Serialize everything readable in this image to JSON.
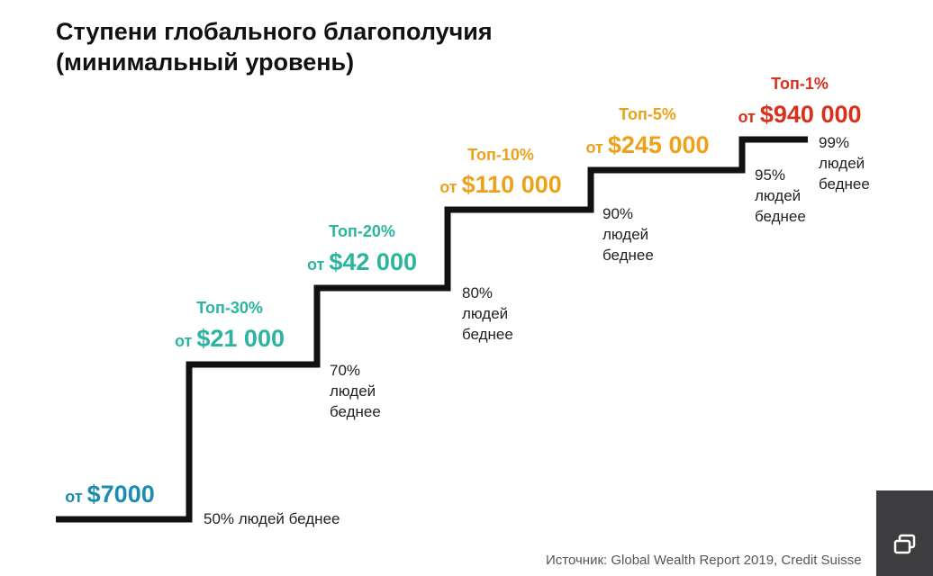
{
  "header": {
    "title_line1": "Ступени глобального благополучия",
    "title_line2": "(минимальный уровень)"
  },
  "source": "Источник: Global Wealth Report 2019, Credit Suisse",
  "colors": {
    "line": "#111111",
    "step1": "#1a8cad",
    "teal": "#2bb5a0",
    "orange": "#eda11b",
    "red": "#d9301c"
  },
  "corner_button": {
    "icon": "copy-icon"
  },
  "chart_data": {
    "type": "step",
    "title": "Ступени глобального благополучия (минимальный уровень)",
    "value_prefix": "от",
    "currency": "USD",
    "steps": [
      {
        "tier": "",
        "threshold": 7000,
        "amount_label": "$7000",
        "note_lines": [
          "50% людей беднее"
        ],
        "color": "#1a8cad"
      },
      {
        "tier": "Топ-30%",
        "threshold": 21000,
        "amount_label": "$21 000",
        "note_lines": [
          "70%",
          "людей",
          "беднее"
        ],
        "color": "#2bb5a0"
      },
      {
        "tier": "Топ-20%",
        "threshold": 42000,
        "amount_label": "$42 000",
        "note_lines": [
          "80%",
          "людей",
          "беднее"
        ],
        "color": "#2bb5a0"
      },
      {
        "tier": "Топ-10%",
        "threshold": 110000,
        "amount_label": "$110 000",
        "note_lines": [
          "90%",
          "людей",
          "беднее"
        ],
        "color": "#eda11b"
      },
      {
        "tier": "Топ-5%",
        "threshold": 245000,
        "amount_label": "$245 000",
        "note_lines": [
          "95%",
          "людей",
          "беднее"
        ],
        "color": "#eda11b"
      },
      {
        "tier": "Топ-1%",
        "threshold": 940000,
        "amount_label": "$940 000",
        "note_lines": [
          "99%",
          "людей",
          "беднее"
        ],
        "color": "#d9301c"
      }
    ]
  }
}
